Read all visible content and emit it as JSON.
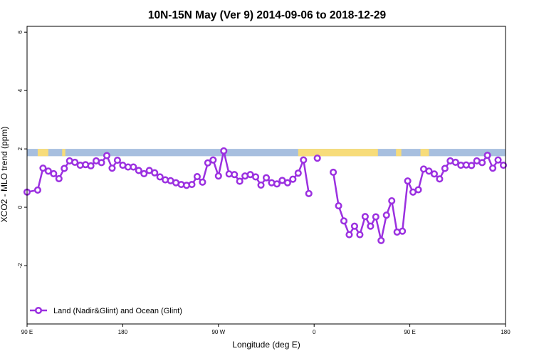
{
  "chart_data": {
    "type": "line",
    "title": "10N-15N May (Ver 9)   2014-09-06 to 2018-12-29",
    "xlabel": "Longitude (deg E)",
    "ylabel": "XCO2 - MLO trend (ppm)",
    "x_ticks": [
      {
        "value": 0,
        "label": "90 E"
      },
      {
        "value": 90,
        "label": "180"
      },
      {
        "value": 180,
        "label": "90 W"
      },
      {
        "value": 270,
        "label": "0"
      },
      {
        "value": 360,
        "label": "90 E"
      },
      {
        "value": 450,
        "label": "180"
      }
    ],
    "y_ticks": [
      -2,
      0,
      2,
      4,
      6
    ],
    "xlim": [
      0,
      450
    ],
    "ylim": [
      -4,
      6.2
    ],
    "grid": false,
    "legend_position": "bottom-left",
    "band": {
      "y_range": [
        1.75,
        2.0
      ],
      "ocean_color": "#a7bfdf",
      "land_color": "#f7dc7a",
      "land_x_ranges": [
        [
          10,
          20
        ],
        [
          33,
          36
        ],
        [
          255,
          330
        ],
        [
          347,
          352
        ],
        [
          370,
          378
        ]
      ]
    },
    "series": [
      {
        "name": "Land (Nadir&Glint) and Ocean (Glint)",
        "color": "#9b30e0",
        "segments": [
          [
            [
              0,
              0.52
            ],
            [
              10,
              0.59
            ],
            [
              15,
              1.34
            ],
            [
              20,
              1.24
            ],
            [
              25,
              1.15
            ],
            [
              30,
              0.98
            ],
            [
              35,
              1.33
            ],
            [
              40,
              1.59
            ],
            [
              45,
              1.54
            ],
            [
              50,
              1.44
            ],
            [
              55,
              1.46
            ],
            [
              60,
              1.42
            ],
            [
              65,
              1.59
            ],
            [
              70,
              1.53
            ],
            [
              75,
              1.77
            ],
            [
              80,
              1.34
            ],
            [
              85,
              1.61
            ],
            [
              90,
              1.44
            ],
            [
              95,
              1.38
            ],
            [
              100,
              1.38
            ],
            [
              105,
              1.26
            ],
            [
              110,
              1.15
            ],
            [
              115,
              1.26
            ],
            [
              120,
              1.18
            ],
            [
              125,
              1.04
            ],
            [
              130,
              0.94
            ],
            [
              135,
              0.91
            ],
            [
              140,
              0.84
            ],
            [
              145,
              0.78
            ],
            [
              150,
              0.75
            ],
            [
              155,
              0.78
            ],
            [
              160,
              1.05
            ],
            [
              165,
              0.86
            ],
            [
              170,
              1.52
            ],
            [
              175,
              1.62
            ],
            [
              180,
              1.07
            ],
            [
              185,
              1.93
            ],
            [
              190,
              1.14
            ],
            [
              195,
              1.12
            ],
            [
              200,
              0.89
            ],
            [
              205,
              1.07
            ],
            [
              210,
              1.12
            ],
            [
              215,
              1.04
            ],
            [
              220,
              0.76
            ],
            [
              225,
              1.01
            ],
            [
              230,
              0.84
            ],
            [
              235,
              0.8
            ],
            [
              240,
              0.92
            ],
            [
              245,
              0.84
            ],
            [
              250,
              0.96
            ],
            [
              255,
              1.17
            ],
            [
              260,
              1.62
            ],
            [
              265,
              0.47
            ]
          ],
          [
            [
              273,
              1.68
            ]
          ],
          [
            [
              288,
              1.2
            ],
            [
              293,
              0.05
            ],
            [
              298,
              -0.47
            ],
            [
              303,
              -0.94
            ],
            [
              308,
              -0.65
            ],
            [
              313,
              -0.94
            ],
            [
              318,
              -0.32
            ],
            [
              323,
              -0.65
            ],
            [
              328,
              -0.33
            ],
            [
              333,
              -1.14
            ],
            [
              338,
              -0.27
            ],
            [
              343,
              0.22
            ],
            [
              348,
              -0.85
            ],
            [
              353,
              -0.82
            ],
            [
              358,
              0.9
            ],
            [
              363,
              0.52
            ],
            [
              368,
              0.6
            ],
            [
              373,
              1.31
            ],
            [
              378,
              1.24
            ],
            [
              383,
              1.14
            ],
            [
              388,
              0.97
            ],
            [
              393,
              1.33
            ],
            [
              398,
              1.59
            ],
            [
              403,
              1.54
            ],
            [
              408,
              1.44
            ],
            [
              413,
              1.45
            ],
            [
              418,
              1.43
            ],
            [
              423,
              1.59
            ],
            [
              428,
              1.53
            ],
            [
              433,
              1.78
            ],
            [
              438,
              1.34
            ],
            [
              443,
              1.62
            ],
            [
              448,
              1.44
            ]
          ]
        ]
      }
    ]
  }
}
